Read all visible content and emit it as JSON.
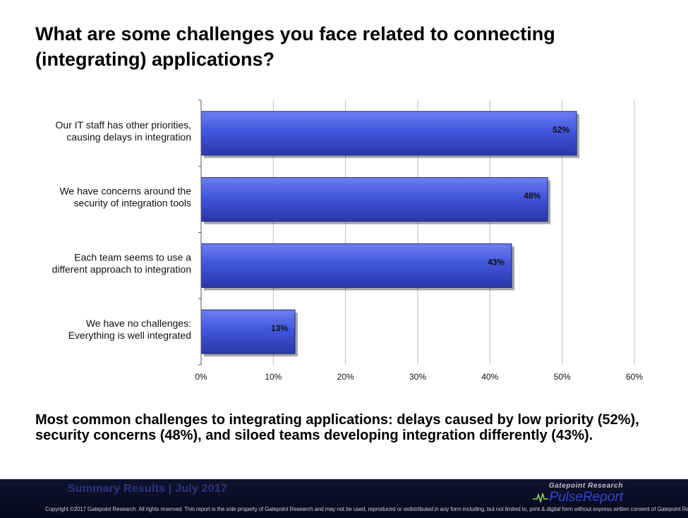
{
  "title": "What are some challenges you face related to connecting (integrating) applications?",
  "chart_data": {
    "type": "bar",
    "orientation": "horizontal",
    "categories": [
      [
        "Our IT staff has other priorities,",
        "causing delays in integration"
      ],
      [
        "We have concerns around the",
        "security of integration tools"
      ],
      [
        "Each team seems to use a",
        "different approach to integration"
      ],
      [
        "We have no challenges:",
        "Everything is well integrated"
      ]
    ],
    "values": [
      52,
      48,
      43,
      13
    ],
    "data_labels": [
      "52%",
      "48%",
      "43%",
      "13%"
    ],
    "xlim": [
      0,
      60
    ],
    "xticks": [
      0,
      10,
      20,
      30,
      40,
      50,
      60
    ],
    "xtick_labels": [
      "0%",
      "10%",
      "20%",
      "30%",
      "40%",
      "50%",
      "60%"
    ],
    "grid": true,
    "bar_color": "#3f55d6"
  },
  "summary": "Most common challenges to integrating applications: delays caused by low priority (52%), security concerns (48%), and siloed teams developing integration differently (43%).",
  "footer": {
    "left": "Summary Results | July 2017",
    "brand_top": "Gatepoint Research",
    "brand_name": "PulseReport",
    "brand_icon": "pulse-line-icon",
    "copyright": "Copyright ©2017 Gatepoint Research. All rights reserved. This report is the sole property of Gatepoint Research and may not be used, reproduced or redistributed in any form including, but not limited to, print & digital form without express written consent of Gatepoint Research."
  }
}
